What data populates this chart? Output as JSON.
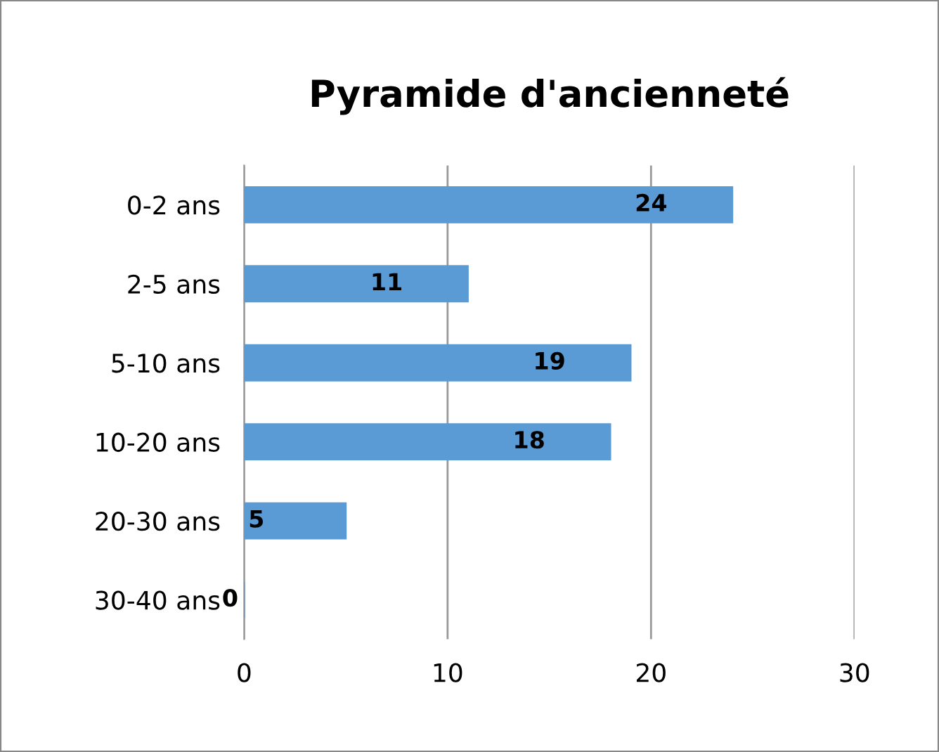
{
  "chart_data": {
    "type": "bar",
    "orientation": "horizontal",
    "title": "Pyramide d'ancienneté",
    "categories": [
      "0-2 ans",
      "2-5 ans",
      "5-10 ans",
      "10-20 ans",
      "20-30 ans",
      "30-40 ans"
    ],
    "values": [
      24,
      11,
      19,
      18,
      5,
      0
    ],
    "color": "#5b9bd5",
    "xlim": [
      0,
      30
    ],
    "xticks": [
      0,
      10,
      20,
      30
    ],
    "grid": "x",
    "data_labels": true
  }
}
